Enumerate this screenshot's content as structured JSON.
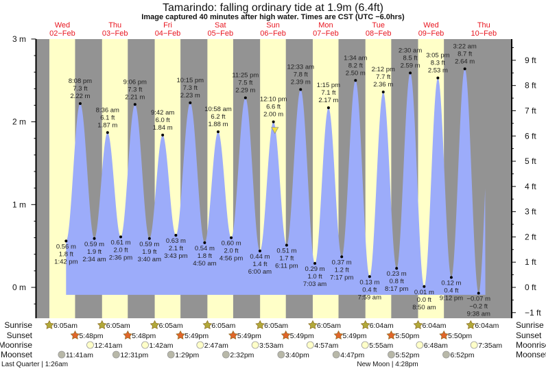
{
  "chart_data": {
    "type": "area",
    "title": "Tamarindo: falling  ordinary tide at 1.9m (6.4ft)",
    "subtitle": "Image captured 40 minutes after high water. Times are CST (UTC −6.0hrs)",
    "days": [
      {
        "dow": "Wed",
        "date": "02−Feb"
      },
      {
        "dow": "Thu",
        "date": "03−Feb"
      },
      {
        "dow": "Fri",
        "date": "04−Feb"
      },
      {
        "dow": "Sat",
        "date": "05−Feb"
      },
      {
        "dow": "Sun",
        "date": "06−Feb"
      },
      {
        "dow": "Mon",
        "date": "07−Feb"
      },
      {
        "dow": "Tue",
        "date": "08−Feb"
      },
      {
        "dow": "Wed",
        "date": "09−Feb"
      },
      {
        "dow": "Thu",
        "date": "10−Feb"
      }
    ],
    "ylim_m": [
      -0.37,
      3
    ],
    "left_axis_ticks": [
      "3 m",
      "2 m",
      "1 m",
      "0 m"
    ],
    "right_axis_ticks": [
      "9 ft",
      "8 ft",
      "7 ft",
      "6 ft",
      "5 ft",
      "4 ft",
      "3 ft",
      "2 ft",
      "1 ft",
      "0 ft",
      "−1 ft"
    ],
    "extrema": [
      {
        "day": 0,
        "type": "low",
        "time": "1:42 pm",
        "ft": "1.8 ft",
        "m": "0.56 m"
      },
      {
        "day": 0,
        "type": "high",
        "time": "8:08 pm",
        "ft": "7.3 ft",
        "m": "2.22 m"
      },
      {
        "day": 1,
        "type": "low",
        "time": "2:34 am",
        "ft": "1.9 ft",
        "m": "0.59 m"
      },
      {
        "day": 1,
        "type": "high",
        "time": "8:36 am",
        "ft": "6.1 ft",
        "m": "1.87 m"
      },
      {
        "day": 1,
        "type": "low",
        "time": "2:36 pm",
        "ft": "2.0 ft",
        "m": "0.61 m"
      },
      {
        "day": 1,
        "type": "high",
        "time": "9:06 pm",
        "ft": "7.3 ft",
        "m": "2.21 m"
      },
      {
        "day": 2,
        "type": "low",
        "time": "3:40 am",
        "ft": "1.9 ft",
        "m": "0.59 m"
      },
      {
        "day": 2,
        "type": "high",
        "time": "9:42 am",
        "ft": "6.0 ft",
        "m": "1.84 m"
      },
      {
        "day": 2,
        "type": "low",
        "time": "3:43 pm",
        "ft": "2.1 ft",
        "m": "0.63 m"
      },
      {
        "day": 2,
        "type": "high",
        "time": "10:15 pm",
        "ft": "7.3 ft",
        "m": "2.23 m"
      },
      {
        "day": 3,
        "type": "low",
        "time": "4:50 am",
        "ft": "1.8 ft",
        "m": "0.54 m"
      },
      {
        "day": 3,
        "type": "high",
        "time": "10:58 am",
        "ft": "6.2 ft",
        "m": "1.88 m"
      },
      {
        "day": 3,
        "type": "low",
        "time": "4:56 pm",
        "ft": "2.0 ft",
        "m": "0.60 m"
      },
      {
        "day": 3,
        "type": "high",
        "time": "11:25 pm",
        "ft": "7.5 ft",
        "m": "2.29 m"
      },
      {
        "day": 4,
        "type": "low",
        "time": "6:00 am",
        "ft": "1.4 ft",
        "m": "0.44 m"
      },
      {
        "day": 4,
        "type": "high",
        "time": "12:10 pm",
        "ft": "6.6 ft",
        "m": "2.00 m"
      },
      {
        "day": 4,
        "type": "low",
        "time": "6:11 pm",
        "ft": "1.7 ft",
        "m": "0.51 m"
      },
      {
        "day": 5,
        "type": "high",
        "time": "12:33 am",
        "ft": "7.8 ft",
        "m": "2.39 m"
      },
      {
        "day": 5,
        "type": "low",
        "time": "7:03 am",
        "ft": "1.0 ft",
        "m": "0.29 m"
      },
      {
        "day": 5,
        "type": "high",
        "time": "1:15 pm",
        "ft": "7.1 ft",
        "m": "2.17 m"
      },
      {
        "day": 5,
        "type": "low",
        "time": "7:17 pm",
        "ft": "1.2 ft",
        "m": "0.37 m"
      },
      {
        "day": 6,
        "type": "high",
        "time": "1:34 am",
        "ft": "8.2 ft",
        "m": "2.50 m"
      },
      {
        "day": 6,
        "type": "low",
        "time": "7:59 am",
        "ft": "0.4 ft",
        "m": "0.13 m"
      },
      {
        "day": 6,
        "type": "high",
        "time": "2:12 pm",
        "ft": "7.7 ft",
        "m": "2.36 m"
      },
      {
        "day": 6,
        "type": "low",
        "time": "8:17 pm",
        "ft": "0.8 ft",
        "m": "0.23 m"
      },
      {
        "day": 7,
        "type": "high",
        "time": "2:30 am",
        "ft": "8.5 ft",
        "m": "2.59 m"
      },
      {
        "day": 7,
        "type": "low",
        "time": "8:50 am",
        "ft": "0.0 ft",
        "m": "0.01 m"
      },
      {
        "day": 7,
        "type": "high",
        "time": "3:05 pm",
        "ft": "8.3 ft",
        "m": "2.53 m"
      },
      {
        "day": 7,
        "type": "low",
        "time": "9:12 pm",
        "ft": "0.4 ft",
        "m": "0.12 m"
      },
      {
        "day": 8,
        "type": "high",
        "time": "3:22 am",
        "ft": "8.7 ft",
        "m": "2.64 m"
      },
      {
        "day": 8,
        "type": "low",
        "time": "9:38 am",
        "ft": "−0.2 ft",
        "m": "−0.07 m"
      }
    ],
    "current": {
      "day": 4,
      "time": "12:50 pm",
      "m": 1.9,
      "state": "falling"
    },
    "colors": {
      "night": "#939393",
      "day": "#ffffc8",
      "water": "#9cacfa",
      "day_label": "#e8141e",
      "sunrise": "#b2a93a",
      "sunset": "#e0662a",
      "moonrise": "#ffffc8",
      "moonset": "#b8b8a8",
      "marker": "#f0e040"
    }
  },
  "almanac": {
    "rows": [
      {
        "key": "sunrise",
        "label": "Sunrise",
        "icon": "star-icon",
        "events": [
          {
            "day": 0,
            "time": "6:05am"
          },
          {
            "day": 1,
            "time": "6:05am"
          },
          {
            "day": 2,
            "time": "6:05am"
          },
          {
            "day": 3,
            "time": "6:05am"
          },
          {
            "day": 4,
            "time": "6:05am"
          },
          {
            "day": 5,
            "time": "6:05am"
          },
          {
            "day": 6,
            "time": "6:04am"
          },
          {
            "day": 7,
            "time": "6:04am"
          },
          {
            "day": 8,
            "time": "6:04am"
          }
        ]
      },
      {
        "key": "sunset",
        "label": "Sunset",
        "icon": "star-icon",
        "events": [
          {
            "day": 0,
            "time": "5:48pm"
          },
          {
            "day": 1,
            "time": "5:48pm"
          },
          {
            "day": 2,
            "time": "5:49pm"
          },
          {
            "day": 3,
            "time": "5:49pm"
          },
          {
            "day": 4,
            "time": "5:49pm"
          },
          {
            "day": 5,
            "time": "5:49pm"
          },
          {
            "day": 6,
            "time": "5:50pm"
          },
          {
            "day": 7,
            "time": "5:50pm"
          }
        ]
      },
      {
        "key": "moonrise",
        "label": "Moonrise",
        "icon": "moon-circle-icon",
        "events": [
          {
            "day": 1,
            "time": "12:41am"
          },
          {
            "day": 2,
            "time": "1:42am"
          },
          {
            "day": 3,
            "time": "2:47am"
          },
          {
            "day": 4,
            "time": "3:53am"
          },
          {
            "day": 5,
            "time": "4:57am"
          },
          {
            "day": 6,
            "time": "5:55am"
          },
          {
            "day": 7,
            "time": "6:48am"
          },
          {
            "day": 8,
            "time": "7:35am"
          }
        ]
      },
      {
        "key": "moonset",
        "label": "Moonset",
        "icon": "moon-circle-icon",
        "events": [
          {
            "day": 0,
            "time": "11:41am"
          },
          {
            "day": 1,
            "time": "12:31pm"
          },
          {
            "day": 2,
            "time": "1:29pm"
          },
          {
            "day": 3,
            "time": "2:32pm"
          },
          {
            "day": 4,
            "time": "3:40pm"
          },
          {
            "day": 5,
            "time": "4:47pm"
          },
          {
            "day": 6,
            "time": "5:52pm"
          },
          {
            "day": 7,
            "time": "6:52pm"
          }
        ]
      }
    ],
    "phases": [
      {
        "text": "Last Quarter | 1:26am"
      },
      {
        "text": "New Moon | 4:28pm"
      }
    ]
  }
}
